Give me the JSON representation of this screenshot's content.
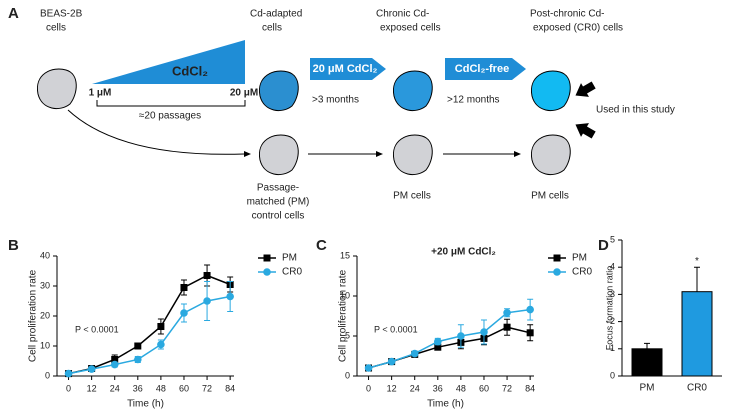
{
  "diagram": {
    "panel_label": "A",
    "beas": [
      "BEAS-2B",
      "cells"
    ],
    "wedge_text": "CdCl₂",
    "wedge_start": "1 μM",
    "wedge_end": "20 μM",
    "passages": "≈20 passages",
    "adapted": [
      "Cd-adapted",
      "cells"
    ],
    "arrow1": "20 μM CdCl₂",
    "arrow1_time": ">3 months",
    "chronic": [
      "Chronic Cd-",
      "exposed cells"
    ],
    "arrow2": "CdCl₂-free",
    "arrow2_time": ">12 months",
    "cr0": [
      "Post-chronic Cd-",
      "exposed (CR0) cells"
    ],
    "used": "Used in this study",
    "pm_control": [
      "Passage-",
      "matched (PM)",
      "control cells"
    ],
    "pm1": "PM cells",
    "pm2": "PM cells"
  },
  "chart_data": [
    {
      "type": "line",
      "panel_label": "B",
      "ylabel": "Cell proliferation rate",
      "xlabel": "Time (h)",
      "annotation": "P < 0.0001",
      "x": [
        0,
        12,
        24,
        36,
        48,
        60,
        72,
        84
      ],
      "xlim": [
        -6,
        86
      ],
      "xticks": [
        0,
        12,
        24,
        36,
        48,
        60,
        72,
        84
      ],
      "ylim": [
        0,
        40
      ],
      "yticks": [
        0,
        10,
        20,
        30,
        40
      ],
      "series": [
        {
          "name": "PM",
          "color": "#000000",
          "marker": "square",
          "values": [
            0.8,
            2.5,
            5.5,
            10,
            16.5,
            29.5,
            33.5,
            30.5
          ],
          "errors": [
            0.3,
            0.5,
            1.5,
            0.8,
            2.5,
            2.5,
            3.5,
            2.5
          ]
        },
        {
          "name": "CR0",
          "color": "#2aa9e0",
          "marker": "circle",
          "values": [
            0.8,
            2.3,
            3.8,
            5.5,
            10.5,
            21,
            25,
            26.5
          ],
          "errors": [
            0.3,
            0.4,
            0.8,
            1,
            1.5,
            3,
            6.5,
            5
          ]
        }
      ]
    },
    {
      "type": "line",
      "panel_label": "C",
      "title": "+20 μM CdCl₂",
      "ylabel": "Cell proliferation rate",
      "xlabel": "Time (h)",
      "annotation": "P < 0.0001",
      "x": [
        0,
        12,
        24,
        36,
        48,
        60,
        72,
        84
      ],
      "xlim": [
        -6,
        86
      ],
      "xticks": [
        0,
        12,
        24,
        36,
        48,
        60,
        72,
        84
      ],
      "ylim": [
        0,
        15
      ],
      "yticks": [
        0,
        5,
        10,
        15
      ],
      "series": [
        {
          "name": "PM",
          "color": "#000000",
          "marker": "square",
          "values": [
            1,
            1.8,
            2.7,
            3.6,
            4.2,
            4.7,
            6.1,
            5.4
          ],
          "errors": [
            0.1,
            0.2,
            0.2,
            0.3,
            0.8,
            0.8,
            1,
            1
          ]
        },
        {
          "name": "CR0",
          "color": "#2aa9e0",
          "marker": "circle",
          "values": [
            1,
            1.8,
            2.8,
            4.3,
            5,
            5.5,
            7.9,
            8.3
          ],
          "errors": [
            0.1,
            0.2,
            0.3,
            0.4,
            1.4,
            1.5,
            0.5,
            1.3
          ]
        }
      ]
    },
    {
      "type": "bar",
      "panel_label": "D",
      "ylabel": "Focus formation ratio",
      "annotation": "*",
      "categories": [
        "PM",
        "CR0"
      ],
      "values": [
        1.0,
        3.1
      ],
      "errors": [
        0.2,
        0.9
      ],
      "colors": [
        "#000000",
        "#1f9ae0"
      ],
      "ylim": [
        0,
        5
      ],
      "yticks": [
        0,
        1,
        2,
        3,
        4,
        5
      ]
    }
  ]
}
